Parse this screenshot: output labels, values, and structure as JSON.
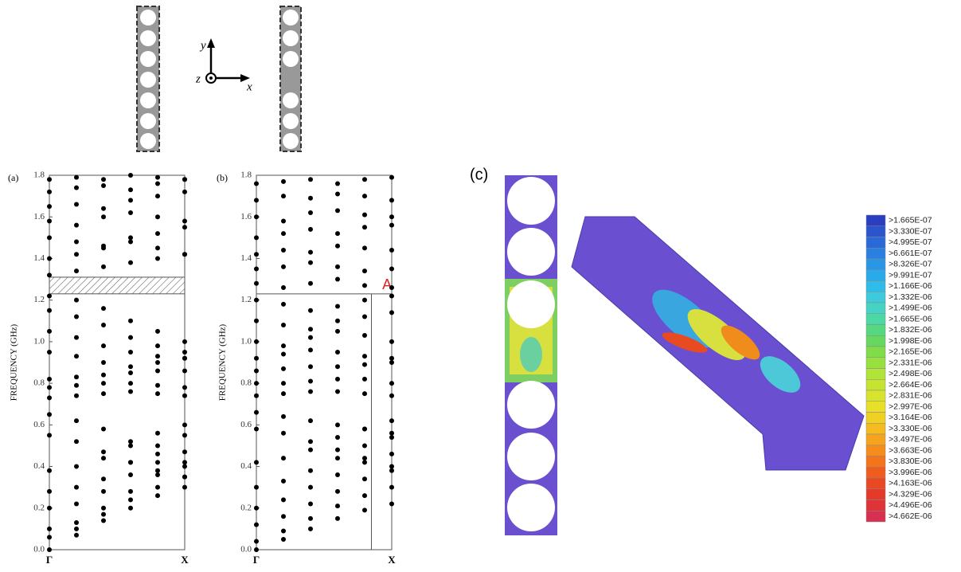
{
  "chart_data": [
    {
      "type": "scatter",
      "label": "(a)",
      "y_label": "FREQUENCY (GHz)",
      "x": [
        0,
        0.2,
        0.4,
        0.6,
        0.8,
        1.0
      ],
      "xlim": [
        0,
        1
      ],
      "xticks": [
        {
          "value": 0,
          "label": "Γ"
        },
        {
          "value": 1,
          "label": "X"
        }
      ],
      "ylim": [
        0,
        1.8
      ],
      "yticks": [
        {
          "value": 0,
          "label": "0.0"
        },
        0.2,
        0.4,
        0.6,
        0.8,
        {
          "value": 1,
          "label": "1.0"
        },
        1.2,
        1.4,
        1.6,
        1.8
      ],
      "band_gap": [
        1.23,
        1.31
      ],
      "series": [
        {
          "color": "#000000",
          "values": [
            0,
            0.07,
            0.14,
            0.2,
            0.26,
            0.3
          ]
        },
        {
          "color": "#000000",
          "values": [
            0.06,
            0.1,
            0.17,
            0.24,
            0.3,
            0.35
          ]
        },
        {
          "color": "#000000",
          "values": [
            0.1,
            0.13,
            0.2,
            0.28,
            0.36,
            0.4
          ]
        },
        {
          "color": "#000000",
          "values": [
            0.2,
            0.22,
            0.28,
            0.36,
            0.42,
            0.47
          ]
        },
        {
          "color": "#000000",
          "values": [
            0.28,
            0.3,
            0.34,
            0.42,
            0.5,
            0.55
          ]
        },
        {
          "color": "#000000",
          "values": [
            0.38,
            0.4,
            0.44,
            0.5,
            0.56,
            0.6
          ]
        },
        {
          "color": "#000000",
          "values": [
            0.55,
            0.52,
            0.47,
            0.42,
            0.38,
            0.35
          ]
        },
        {
          "color": "#000000",
          "values": [
            0.65,
            0.62,
            0.58,
            0.52,
            0.46,
            0.42
          ]
        },
        {
          "color": "#000000",
          "values": [
            0.73,
            0.74,
            0.75,
            0.76,
            0.75,
            0.74
          ]
        },
        {
          "color": "#000000",
          "values": [
            0.78,
            0.79,
            0.8,
            0.8,
            0.79,
            0.78
          ]
        },
        {
          "color": "#000000",
          "values": [
            0.82,
            0.83,
            0.84,
            0.85,
            0.86,
            0.86
          ]
        },
        {
          "color": "#000000",
          "values": [
            0.95,
            0.93,
            0.9,
            0.88,
            0.9,
            0.92
          ]
        },
        {
          "color": "#000000",
          "values": [
            1.05,
            1.02,
            0.98,
            0.95,
            0.93,
            0.92
          ]
        },
        {
          "color": "#000000",
          "values": [
            1.15,
            1.12,
            1.08,
            1.02,
            0.98,
            0.95
          ]
        },
        {
          "color": "#000000",
          "values": [
            1.22,
            1.2,
            1.16,
            1.1,
            1.05,
            1.0
          ]
        },
        {
          "color": "#000000",
          "values": [
            1.32,
            1.34,
            1.36,
            1.38,
            1.4,
            1.42
          ]
        },
        {
          "color": "#000000",
          "values": [
            1.4,
            1.42,
            1.45,
            1.48,
            1.45,
            1.42
          ]
        },
        {
          "color": "#000000",
          "values": [
            1.5,
            1.48,
            1.46,
            1.5,
            1.52,
            1.55
          ]
        },
        {
          "color": "#000000",
          "values": [
            1.58,
            1.56,
            1.6,
            1.62,
            1.6,
            1.58
          ]
        },
        {
          "color": "#000000",
          "values": [
            1.65,
            1.66,
            1.64,
            1.68,
            1.7,
            1.72
          ]
        },
        {
          "color": "#000000",
          "values": [
            1.72,
            1.74,
            1.75,
            1.73,
            1.76,
            1.78
          ]
        },
        {
          "color": "#000000",
          "values": [
            1.78,
            1.79,
            1.78,
            1.8,
            1.79,
            1.78
          ]
        }
      ]
    },
    {
      "type": "scatter",
      "label": "(b)",
      "y_label": "FREQUENCY (GHz)",
      "x": [
        0,
        0.2,
        0.4,
        0.6,
        0.8,
        1.0
      ],
      "xlim": [
        0,
        1
      ],
      "xticks": [
        {
          "value": 0,
          "label": "Γ"
        },
        {
          "value": 1,
          "label": "X"
        }
      ],
      "ylim": [
        0,
        1.8
      ],
      "yticks": [
        {
          "value": 0,
          "label": "0.0"
        },
        0.2,
        0.4,
        0.6,
        0.8,
        {
          "value": 1,
          "label": "1.0"
        },
        1.2,
        1.4,
        1.6,
        1.8
      ],
      "reference_line": 1.23,
      "marker_x": 0.85,
      "annotation": {
        "text": "A",
        "x": 0.93,
        "y": 1.27,
        "color": "#e02020"
      },
      "series": [
        {
          "color": "#000000",
          "values": [
            0,
            0.05,
            0.1,
            0.15,
            0.19,
            0.22
          ]
        },
        {
          "color": "#000000",
          "values": [
            0.04,
            0.09,
            0.15,
            0.21,
            0.26,
            0.3
          ]
        },
        {
          "color": "#000000",
          "values": [
            0.12,
            0.16,
            0.22,
            0.28,
            0.34,
            0.38
          ]
        },
        {
          "color": "#000000",
          "values": [
            0.2,
            0.24,
            0.3,
            0.36,
            0.42,
            0.46
          ]
        },
        {
          "color": "#000000",
          "values": [
            0.3,
            0.33,
            0.38,
            0.44,
            0.5,
            0.54
          ]
        },
        {
          "color": "#000000",
          "values": [
            0.42,
            0.44,
            0.48,
            0.54,
            0.58,
            0.62
          ]
        },
        {
          "color": "#000000",
          "values": [
            0.58,
            0.56,
            0.52,
            0.48,
            0.44,
            0.4
          ]
        },
        {
          "color": "#000000",
          "values": [
            0.66,
            0.64,
            0.62,
            0.6,
            0.58,
            0.56
          ]
        },
        {
          "color": "#000000",
          "values": [
            0.74,
            0.75,
            0.76,
            0.76,
            0.75,
            0.74
          ]
        },
        {
          "color": "#000000",
          "values": [
            0.8,
            0.8,
            0.81,
            0.82,
            0.82,
            0.8
          ]
        },
        {
          "color": "#000000",
          "values": [
            0.86,
            0.87,
            0.88,
            0.88,
            0.89,
            0.9
          ]
        },
        {
          "color": "#000000",
          "values": [
            0.92,
            0.94,
            0.96,
            0.95,
            0.93,
            0.92
          ]
        },
        {
          "color": "#000000",
          "values": [
            1.0,
            0.98,
            1.02,
            1.05,
            1.03,
            1.0
          ]
        },
        {
          "color": "#000000",
          "values": [
            1.1,
            1.08,
            1.06,
            1.1,
            1.12,
            1.14
          ]
        },
        {
          "color": "#000000",
          "values": [
            1.2,
            1.18,
            1.15,
            1.17,
            1.2,
            1.22
          ]
        },
        {
          "color": "#000000",
          "values": [
            1.28,
            1.26,
            1.28,
            1.3,
            1.27,
            1.26
          ]
        },
        {
          "color": "#000000",
          "values": [
            1.35,
            1.36,
            1.38,
            1.36,
            1.34,
            1.35
          ]
        },
        {
          "color": "#000000",
          "values": [
            1.42,
            1.44,
            1.43,
            1.46,
            1.45,
            1.44
          ]
        },
        {
          "color": "#000000",
          "values": [
            1.5,
            1.52,
            1.54,
            1.52,
            1.55,
            1.56
          ]
        },
        {
          "color": "#000000",
          "values": [
            1.6,
            1.58,
            1.62,
            1.63,
            1.61,
            1.6
          ]
        },
        {
          "color": "#000000",
          "values": [
            1.68,
            1.7,
            1.69,
            1.71,
            1.7,
            1.68
          ]
        },
        {
          "color": "#000000",
          "values": [
            1.76,
            1.77,
            1.78,
            1.76,
            1.78,
            1.79
          ]
        }
      ]
    }
  ],
  "schematic": {
    "y": "y",
    "z": "z",
    "x": "x"
  },
  "figure_c": {
    "label": "(c)",
    "colorbar": {
      "labels": [
        ">1.665E-07",
        ">3.330E-07",
        ">4.995E-07",
        ">6.661E-07",
        ">8.326E-07",
        ">9.991E-07",
        ">1.166E-06",
        ">1.332E-06",
        ">1.499E-06",
        ">1.665E-06",
        ">1.832E-06",
        ">1.998E-06",
        ">2.165E-06",
        ">2.331E-06",
        ">2.498E-06",
        ">2.664E-06",
        ">2.831E-06",
        ">2.997E-06",
        ">3.164E-06",
        ">3.330E-06",
        ">3.497E-06",
        ">3.663E-06",
        ">3.830E-06",
        ">3.996E-06",
        ">4.163E-06",
        ">4.329E-06",
        ">4.496E-06",
        ">4.662E-06"
      ],
      "colors": [
        "#2a3fbf",
        "#2a55cc",
        "#2a6ad8",
        "#2a80e0",
        "#2a96e6",
        "#2aaaea",
        "#30bce8",
        "#3ccadc",
        "#45d4c4",
        "#4cd8a4",
        "#55d880",
        "#66d860",
        "#80dc48",
        "#98e040",
        "#b0e438",
        "#c4e430",
        "#d8e42c",
        "#e8e028",
        "#f0d024",
        "#f4bc20",
        "#f6a41e",
        "#f68c1c",
        "#f4741c",
        "#f05c1e",
        "#ea4822",
        "#e43a2a",
        "#de3438",
        "#d83050"
      ]
    }
  }
}
